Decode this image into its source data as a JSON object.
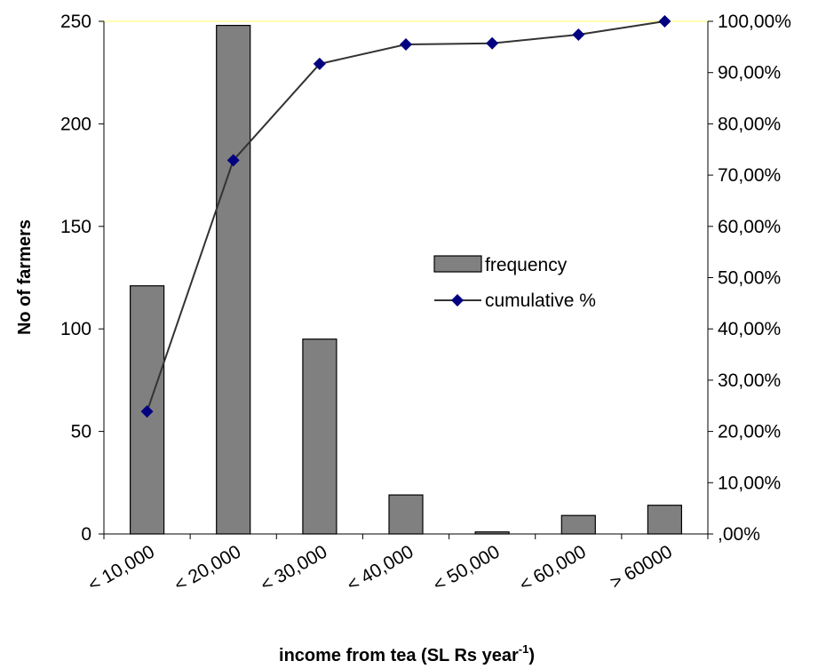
{
  "chart_data": {
    "type": "bar",
    "categories": [
      "< 10,000",
      "< 20,000",
      "< 30,000",
      "< 40,000",
      "< 50,000",
      "< 60,000",
      "> 60000"
    ],
    "series": [
      {
        "name": "frequency",
        "kind": "bar",
        "axis": "left",
        "values": [
          121,
          248,
          95,
          19,
          1,
          9,
          14
        ]
      },
      {
        "name": "cumulative %",
        "kind": "line",
        "axis": "right",
        "values": [
          23.9,
          72.9,
          91.7,
          95.5,
          95.7,
          97.4,
          100.0
        ]
      }
    ],
    "xlabel_main": "income from tea (SL Rs  year",
    "xlabel_sup": "-1",
    "xlabel_close": ")",
    "ylabel": "No of farmers",
    "ylim": [
      0,
      250
    ],
    "y_ticks": [
      "0",
      "50",
      "100",
      "150",
      "200",
      "250"
    ],
    "y2lim": [
      0,
      100
    ],
    "y2_ticks": [
      ",00%",
      "10,00%",
      "20,00%",
      "30,00%",
      "40,00%",
      "50,00%",
      "60,00%",
      "70,00%",
      "80,00%",
      "90,00%",
      "100,00%"
    ],
    "legend_position": "center-right",
    "grid": false,
    "colors": {
      "bar_fill": "#808080",
      "bar_stroke": "#000000",
      "line": "#333333",
      "marker": "#000080",
      "top_border": "#ffff99"
    }
  }
}
